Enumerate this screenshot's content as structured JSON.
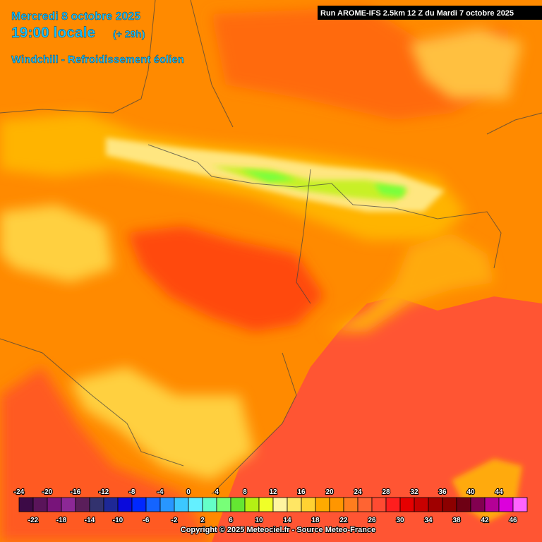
{
  "header": {
    "date": "Mercredi 8 octobre 2025",
    "time": "19:00 locale",
    "lead": "(+ 29h)",
    "parameter": "Windchill - Refroidissement éolien",
    "run": "Run AROME-IFS 2.5km 12 Z du Mardi 7 octobre 2025"
  },
  "legend": {
    "ticks": [
      -24,
      -22,
      -20,
      -18,
      -16,
      -14,
      -12,
      -10,
      -8,
      -6,
      -4,
      -2,
      0,
      2,
      4,
      6,
      8,
      10,
      12,
      14,
      16,
      18,
      20,
      22,
      24,
      26,
      28,
      30,
      32,
      34,
      36,
      38,
      40,
      42,
      44,
      46
    ],
    "colors": [
      "#3c0a46",
      "#5a145a",
      "#78147a",
      "#8c2896",
      "#5a1e5a",
      "#32326e",
      "#1e2896",
      "#0a0adc",
      "#0028ff",
      "#1464ff",
      "#2896ff",
      "#3cc8ff",
      "#64f0ff",
      "#64ffc8",
      "#78ff78",
      "#64e632",
      "#b4f014",
      "#f0ff28",
      "#fff5a0",
      "#ffe664",
      "#ffd232",
      "#ffaa00",
      "#ff9600",
      "#ff7d1e",
      "#ff6432",
      "#ff4b32",
      "#ff1e1e",
      "#e60000",
      "#c80000",
      "#a00000",
      "#8c0000",
      "#6e0014",
      "#820050",
      "#b40096",
      "#dc00dc",
      "#ff64ff"
    ]
  },
  "footer": {
    "copyright": "Copyright © 2025 Meteociel.fr - Source Meteo-France"
  }
}
